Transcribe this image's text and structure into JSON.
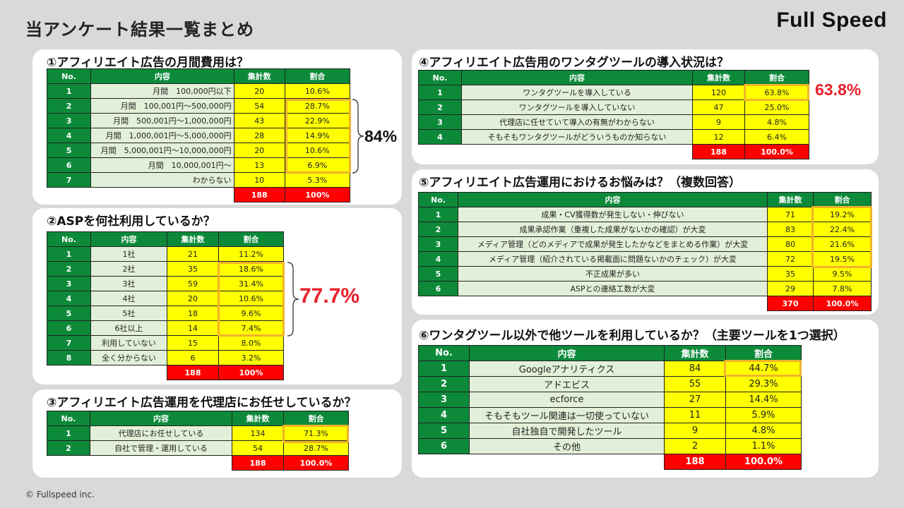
{
  "page": {
    "title": "当アンケート結果一覧まとめ",
    "logo": "Full Speed",
    "footer": "© Fullspeed inc."
  },
  "q1": {
    "title": "①アフィリエイト広告の月間費用は？",
    "headers": [
      "No.",
      "内容",
      "集計数",
      "割合"
    ],
    "rows": [
      {
        "no": "1",
        "label": "月間　100,000円以下",
        "count": "20",
        "pct": "10.6%"
      },
      {
        "no": "2",
        "label": "月間　100,001円〜500,000円",
        "count": "54",
        "pct": "28.7%"
      },
      {
        "no": "3",
        "label": "月間　500,001円〜1,000,000円",
        "count": "43",
        "pct": "22.9%"
      },
      {
        "no": "4",
        "label": "月間　1,000,001円〜5,000,000円",
        "count": "28",
        "pct": "14.9%"
      },
      {
        "no": "5",
        "label": "月間　5,000,001円〜10,000,000円",
        "count": "20",
        "pct": "10.6%"
      },
      {
        "no": "6",
        "label": "月間　10,000,001円〜",
        "count": "13",
        "pct": "6.9%"
      },
      {
        "no": "7",
        "label": "わからない",
        "count": "10",
        "pct": "5.3%"
      }
    ],
    "total_count": "188",
    "total_pct": "100%",
    "callout": "84%"
  },
  "q2": {
    "title": "②ASPを何社利用しているか？",
    "headers": [
      "No.",
      "内容",
      "集計数",
      "割合"
    ],
    "rows": [
      {
        "no": "1",
        "label": "1社",
        "count": "21",
        "pct": "11.2%"
      },
      {
        "no": "2",
        "label": "2社",
        "count": "35",
        "pct": "18.6%"
      },
      {
        "no": "3",
        "label": "3社",
        "count": "59",
        "pct": "31.4%"
      },
      {
        "no": "4",
        "label": "4社",
        "count": "20",
        "pct": "10.6%"
      },
      {
        "no": "5",
        "label": "5社",
        "count": "18",
        "pct": "9.6%"
      },
      {
        "no": "6",
        "label": "6社以上",
        "count": "14",
        "pct": "7.4%"
      },
      {
        "no": "7",
        "label": "利用していない",
        "count": "15",
        "pct": "8.0%"
      },
      {
        "no": "8",
        "label": "全く分からない",
        "count": "6",
        "pct": "3.2%"
      }
    ],
    "total_count": "188",
    "total_pct": "100%",
    "callout": "77.7%"
  },
  "q3": {
    "title": "③アフィリエイト広告運用を代理店にお任せしているか？",
    "headers": [
      "No.",
      "内容",
      "集計数",
      "割合"
    ],
    "rows": [
      {
        "no": "1",
        "label": "代理店にお任せしている",
        "count": "134",
        "pct": "71.3%"
      },
      {
        "no": "2",
        "label": "自社で管理・運用している",
        "count": "54",
        "pct": "28.7%"
      }
    ],
    "total_count": "188",
    "total_pct": "100.0%"
  },
  "q4": {
    "title": "④アフィリエイト広告用のワンタグツールの導入状況は？",
    "headers": [
      "No.",
      "内容",
      "集計数",
      "割合"
    ],
    "rows": [
      {
        "no": "1",
        "label": "ワンタグツールを導入している",
        "count": "120",
        "pct": "63.8%"
      },
      {
        "no": "2",
        "label": "ワンタグツールを導入していない",
        "count": "47",
        "pct": "25.0%"
      },
      {
        "no": "3",
        "label": "代理店に任せていて導入の有無がわからない",
        "count": "9",
        "pct": "4.8%"
      },
      {
        "no": "4",
        "label": "そもそもワンタグツールがどういうものか知らない",
        "count": "12",
        "pct": "6.4%"
      }
    ],
    "total_count": "188",
    "total_pct": "100.0%",
    "callout": "63.8%"
  },
  "q5": {
    "title": "⑤アフィリエイト広告運用におけるお悩みは？（複数回答）",
    "headers": [
      "No.",
      "内容",
      "集計数",
      "割合"
    ],
    "rows": [
      {
        "no": "1",
        "label": "成果・CV獲得数が発生しない・伸びない",
        "count": "71",
        "pct": "19.2%"
      },
      {
        "no": "2",
        "label": "成果承認作業（重複した成果がないかの確認）が大変",
        "count": "83",
        "pct": "22.4%"
      },
      {
        "no": "3",
        "label": "メディア管理（どのメディアで成果が発生したかなどをまとめる作業）が大変",
        "count": "80",
        "pct": "21.6%"
      },
      {
        "no": "4",
        "label": "メディア管理（紹介されている掲載面に問題ないかのチェック）が大変",
        "count": "72",
        "pct": "19.5%"
      },
      {
        "no": "5",
        "label": "不正成果が多い",
        "count": "35",
        "pct": "9.5%"
      },
      {
        "no": "6",
        "label": "ASPとの連絡工数が大変",
        "count": "29",
        "pct": "7.8%"
      }
    ],
    "total_count": "370",
    "total_pct": "100.0%"
  },
  "q6": {
    "title": "⑥ワンタグツール以外で他ツールを利用しているか？（主要ツールを1つ選択）",
    "headers": [
      "No.",
      "内容",
      "集計数",
      "割合"
    ],
    "rows": [
      {
        "no": "1",
        "label": "Googleアナリティクス",
        "count": "84",
        "pct": "44.7%"
      },
      {
        "no": "2",
        "label": "アドエビス",
        "count": "55",
        "pct": "29.3%"
      },
      {
        "no": "3",
        "label": "ecforce",
        "count": "27",
        "pct": "14.4%"
      },
      {
        "no": "4",
        "label": "そもそもツール関連は一切使っていない",
        "count": "11",
        "pct": "5.9%"
      },
      {
        "no": "5",
        "label": "自社独自で開発したツール",
        "count": "9",
        "pct": "4.8%"
      },
      {
        "no": "6",
        "label": "その他",
        "count": "2",
        "pct": "1.1%"
      }
    ],
    "total_count": "188",
    "total_pct": "100.0%"
  },
  "colors": {
    "header_green": "#0c8a3a",
    "content_bg": "#e3f0d9",
    "value_yellow": "#ffff00",
    "total_red": "#ff0000",
    "highlight_orange": "#f0b429",
    "callout_red": "#e8202a"
  }
}
